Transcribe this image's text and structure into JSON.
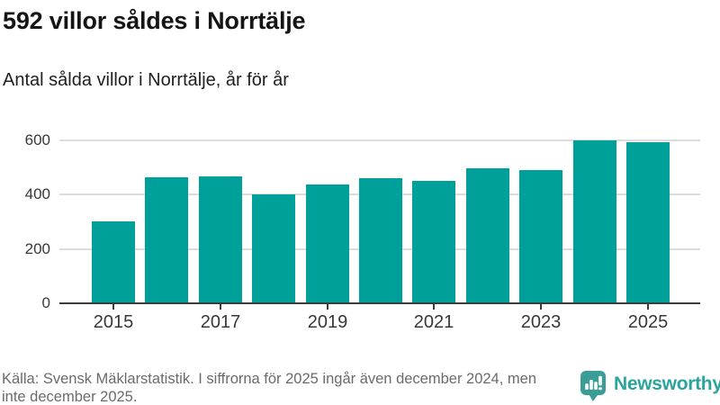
{
  "header": {
    "title": "592 villor såldes i Norrtälje",
    "subtitle": "Antal sålda villor i Norrtälje, år för år"
  },
  "chart_data": {
    "type": "bar",
    "title": "Antal sålda villor i Norrtälje, år för år",
    "categories": [
      "2015",
      "2016",
      "2017",
      "2018",
      "2019",
      "2020",
      "2021",
      "2022",
      "2023",
      "2024",
      "2025"
    ],
    "values": [
      303,
      463,
      467,
      402,
      436,
      462,
      452,
      497,
      489,
      600,
      592
    ],
    "xlabel": "",
    "ylabel": "",
    "ylim": [
      0,
      620
    ],
    "y_ticks": [
      0,
      200,
      400,
      600
    ],
    "x_tick_labels": [
      "2015",
      "2017",
      "2019",
      "2021",
      "2023",
      "2025"
    ],
    "grid": true,
    "legend": false,
    "bar_color": "#00a09a"
  },
  "footer": {
    "source_line1": "Källa: Svensk Mäklarstatistik. I siffrorna för 2025 ingår även december 2024, men",
    "source_line2": "inte december 2025.",
    "brand": "Newsworthy"
  },
  "colors": {
    "bar": "#00a09a",
    "title_text": "#151515",
    "footer_text": "#6b6b6b",
    "axis_text": "#383838",
    "axis_line": "#3c3c3c",
    "gridline": "#dcdcdc",
    "brand_teal": "#2ba49d",
    "background": "#ffffff"
  },
  "icons": {
    "brand_logo": "newsworthy-speech-bubble-bar-chart-icon"
  }
}
